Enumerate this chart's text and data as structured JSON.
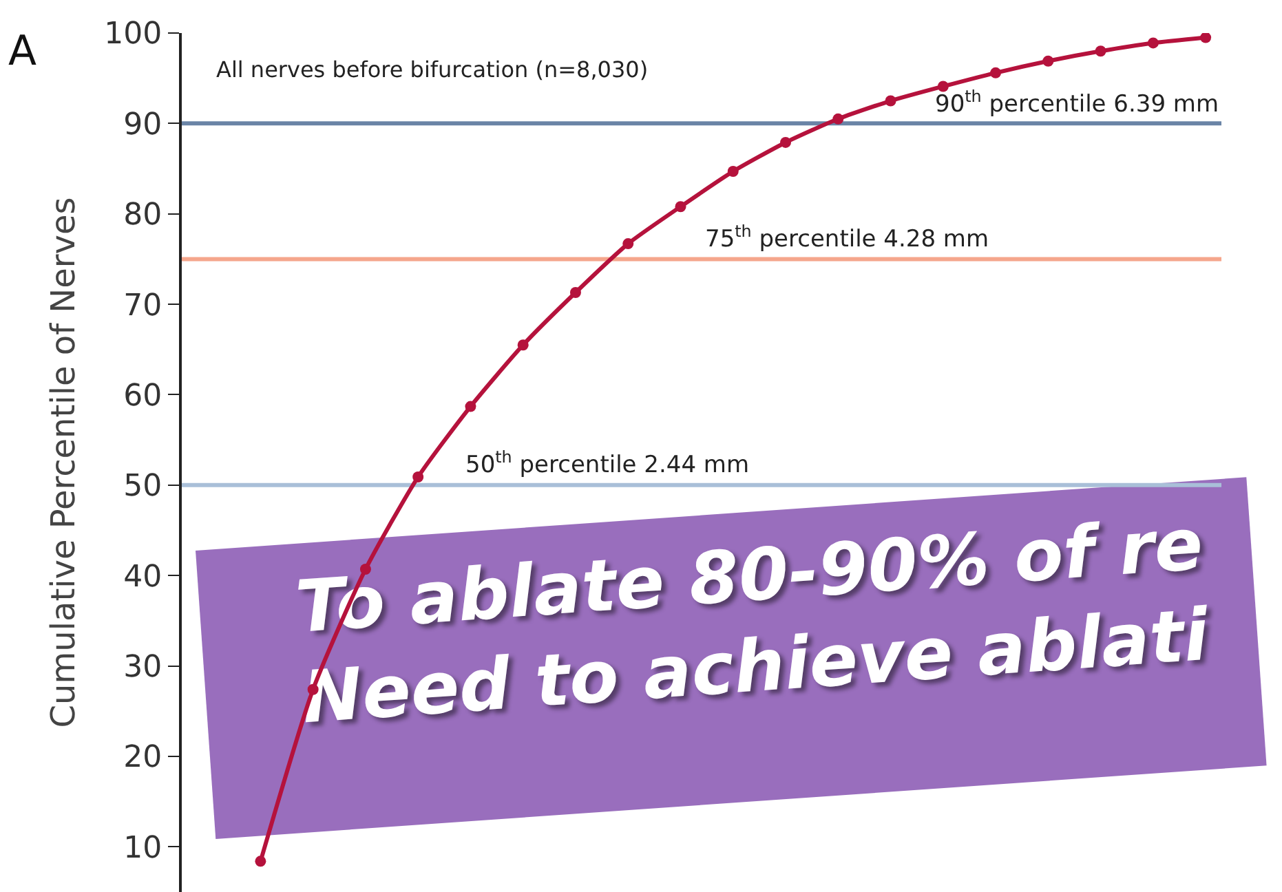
{
  "chart_data": {
    "type": "line",
    "title": "A",
    "ylabel": "Cumulative Percentile of Nerves",
    "annotations": [
      "All nerves before bifurcation (n=8,030)",
      "To ablate 80-90% of re",
      "Need to achieve ablati"
    ],
    "categories": [
      null,
      null,
      null,
      null,
      null,
      null,
      null,
      null,
      null,
      null,
      null,
      null,
      null,
      null,
      null,
      null,
      null,
      null,
      null
    ],
    "series": [
      {
        "color": "#b5123c",
        "values": [
          8.4,
          27.4,
          40.7,
          50.9,
          58.7,
          65.5,
          71.3,
          76.7,
          80.8,
          84.7,
          87.9,
          90.5,
          92.5,
          94.1,
          95.6,
          96.9,
          98.0,
          98.9,
          99.5
        ]
      }
    ],
    "ylim": [
      5,
      100
    ],
    "yticks": [
      10,
      20,
      30,
      40,
      50,
      60,
      70,
      80,
      90,
      100
    ],
    "ref_lines": [
      {
        "axis": "y",
        "value": 90,
        "label": "90$^{th}$ percentile 6.39 mm",
        "color": "#6a84a6"
      },
      {
        "axis": "y",
        "value": 75,
        "label": "75$^{th}$ percentile 4.28 mm",
        "color": "#f5a68c"
      },
      {
        "axis": "y",
        "value": 50,
        "label": "50$^{th}$ percentile 2.44 mm",
        "color": "#a9bfd8"
      }
    ],
    "grid": false,
    "marker": "circle",
    "line_style": "solid",
    "tick_labels": "y"
  }
}
